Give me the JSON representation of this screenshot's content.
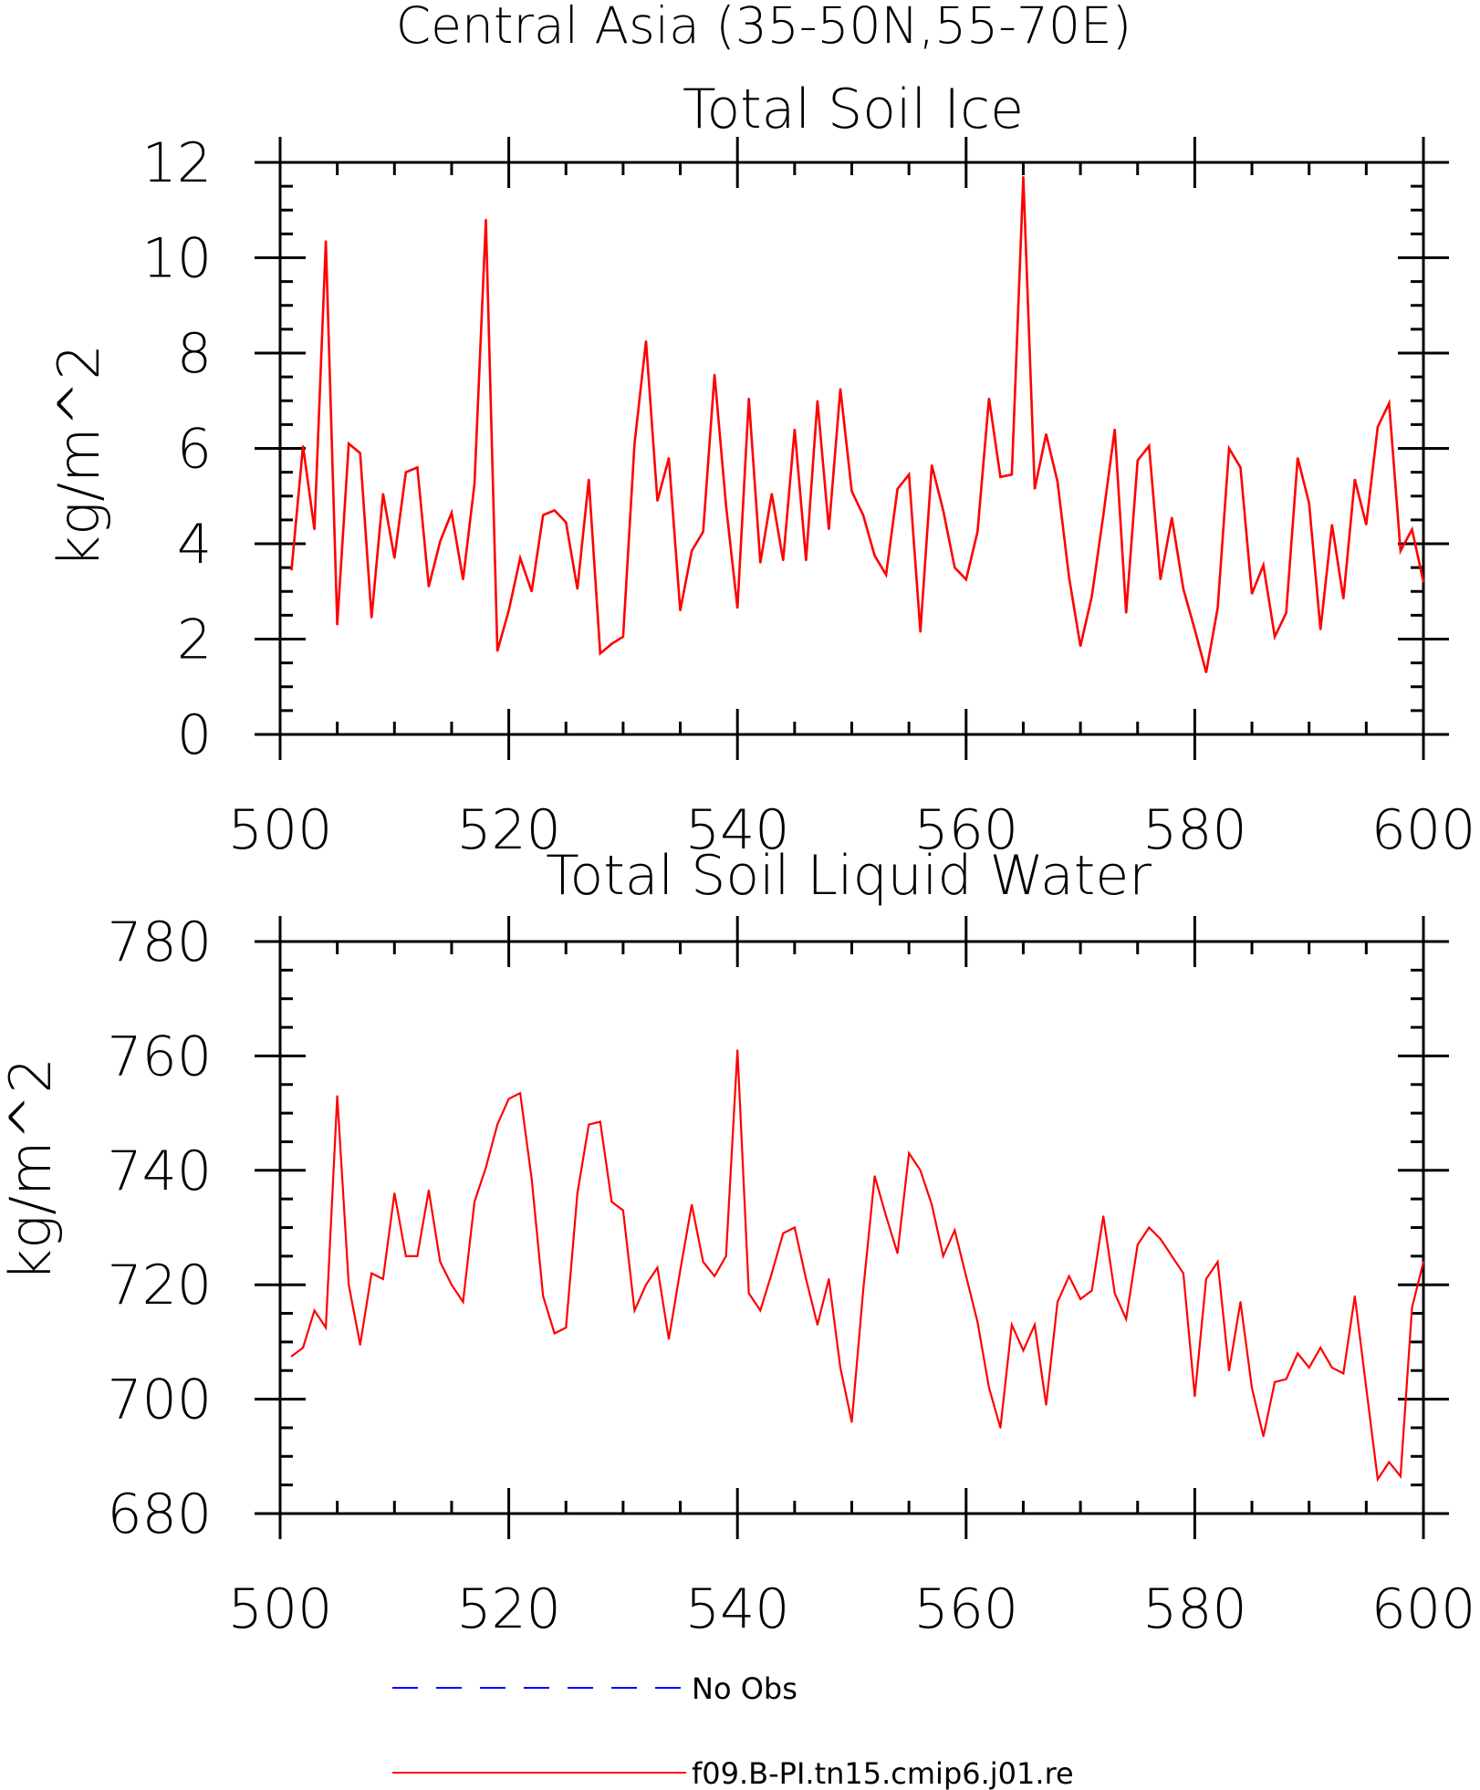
{
  "figure": {
    "title": "Central Asia (35-50N,55-70E)"
  },
  "legend": [
    {
      "label": "No Obs",
      "color": "#0000ff",
      "style": "dashed"
    },
    {
      "label": "f09.B-PI.tn15.cmip6.j01.re",
      "color": "#ff0000",
      "style": "solid"
    }
  ],
  "chart_data": [
    {
      "type": "line",
      "title": "Total Soil Ice",
      "xlabel": "",
      "ylabel": "kg/m^2",
      "xlim": [
        500,
        600
      ],
      "ylim": [
        0,
        12
      ],
      "xticks": [
        500,
        520,
        540,
        560,
        580,
        600
      ],
      "yticks": [
        0,
        2,
        4,
        6,
        8,
        10,
        12
      ],
      "grid": false,
      "x_start": 501,
      "x_step": 1,
      "series": [
        {
          "name": "f09.B-PI.tn15.cmip6.j01.re",
          "color": "#ff0000",
          "values": [
            3.45,
            6.05,
            4.3,
            10.35,
            2.3,
            6.1,
            5.9,
            2.45,
            5.05,
            3.7,
            5.5,
            5.6,
            3.1,
            4.05,
            4.65,
            3.25,
            5.25,
            10.8,
            1.75,
            2.6,
            3.7,
            3.0,
            4.6,
            4.7,
            4.45,
            3.05,
            5.35,
            1.7,
            1.9,
            2.05,
            6.1,
            8.25,
            4.9,
            5.8,
            2.6,
            3.85,
            4.25,
            7.55,
            4.8,
            2.65,
            7.05,
            3.6,
            5.05,
            3.65,
            6.4,
            3.65,
            7.0,
            4.3,
            7.25,
            5.1,
            4.6,
            3.75,
            3.35,
            5.15,
            5.45,
            2.15,
            5.65,
            4.7,
            3.5,
            3.25,
            4.25,
            7.05,
            5.4,
            5.45,
            11.7,
            5.15,
            6.3,
            5.3,
            3.3,
            1.85,
            2.9,
            4.6,
            6.4,
            2.55,
            5.75,
            6.05,
            3.25,
            4.55,
            3.05,
            2.2,
            1.3,
            2.65,
            6.0,
            5.6,
            2.95,
            3.55,
            2.05,
            2.55,
            5.8,
            4.85,
            2.2,
            4.4,
            2.85,
            5.35,
            4.4,
            6.45,
            6.95,
            3.85,
            4.3,
            3.2
          ]
        }
      ]
    },
    {
      "type": "line",
      "title": "Total Soil Liquid Water",
      "xlabel": "",
      "ylabel": "kg/m^2",
      "xlim": [
        500,
        600
      ],
      "ylim": [
        680,
        780
      ],
      "xticks": [
        500,
        520,
        540,
        560,
        580,
        600
      ],
      "yticks": [
        680,
        700,
        720,
        740,
        760,
        780
      ],
      "grid": false,
      "x_start": 501,
      "x_step": 1,
      "series": [
        {
          "name": "f09.B-PI.tn15.cmip6.j01.re",
          "color": "#ff0000",
          "values": [
            707.5,
            709,
            715.5,
            712.5,
            753,
            720,
            709.5,
            722,
            721,
            736,
            725,
            725,
            736.5,
            724,
            720,
            717,
            734.5,
            740.5,
            748,
            752.5,
            753.5,
            738.5,
            718,
            711.5,
            712.5,
            736,
            748,
            748.5,
            734.5,
            733,
            715.5,
            720,
            723,
            710.5,
            722.5,
            734,
            724,
            721.5,
            725,
            761,
            718.5,
            715.5,
            722,
            729,
            730,
            721,
            713,
            721,
            705.5,
            696,
            719,
            739,
            732,
            725.5,
            743,
            740,
            734,
            725,
            729.5,
            721.5,
            713.5,
            702,
            695,
            713,
            708.5,
            713,
            699,
            717,
            721.5,
            717.5,
            719,
            732,
            718.5,
            714,
            727,
            730,
            728,
            725,
            722,
            700.5,
            721,
            724,
            705,
            717,
            702,
            693.5,
            703,
            703.5,
            708,
            705.5,
            709,
            705.5,
            704.5,
            718,
            702,
            686,
            689,
            686.5,
            716,
            724
          ]
        }
      ]
    }
  ]
}
